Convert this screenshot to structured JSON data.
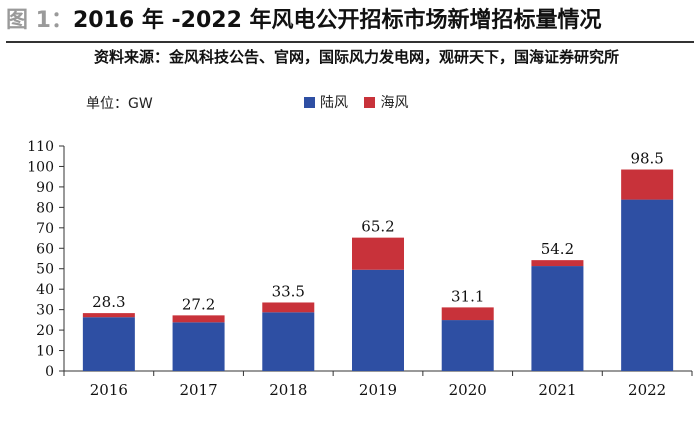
{
  "header": {
    "figure_label": "图 1：",
    "title": "2016 年 -2022 年风电公开招标市场新增招标量情况",
    "source": "资料来源：金风科技公告、官网，国际风力发电网，观研天下，国海证券研究所"
  },
  "colors": {
    "onshore": "#2e4fa3",
    "offshore": "#c8323a",
    "axis": "#333333"
  },
  "chart_data": {
    "type": "bar",
    "stacked": true,
    "title": "2016 年 -2022 年风电公开招标市场新增招标量情况",
    "unit_label": "单位：GW",
    "categories": [
      "2016",
      "2017",
      "2018",
      "2019",
      "2020",
      "2021",
      "2022"
    ],
    "series": [
      {
        "name": "陆风",
        "values": [
          26.3,
          23.8,
          28.7,
          49.5,
          24.9,
          51.3,
          83.8
        ]
      },
      {
        "name": "海风",
        "values": [
          2.0,
          3.4,
          4.8,
          15.7,
          6.2,
          2.9,
          14.7
        ]
      }
    ],
    "totals": [
      "28.3",
      "27.2",
      "33.5",
      "65.2",
      "31.1",
      "54.2",
      "98.5"
    ],
    "ylim": [
      0,
      110
    ],
    "yticks": [
      "0",
      "10",
      "20",
      "30",
      "40",
      "50",
      "60",
      "70",
      "80",
      "90",
      "100",
      "110"
    ],
    "legend_position": "top-center",
    "grid": false
  }
}
